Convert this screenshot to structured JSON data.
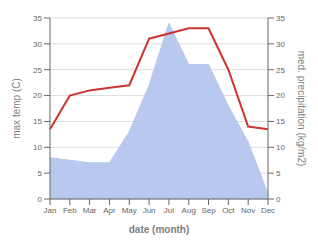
{
  "chart_data": {
    "type": "line",
    "categories": [
      "Jan",
      "Feb",
      "Mar",
      "Apr",
      "May",
      "Jun",
      "Jul",
      "Aug",
      "Sep",
      "Oct",
      "Nov",
      "Dec"
    ],
    "xlabel": "date (month)",
    "ylabel": "max temp (C)",
    "y2label": "med. precipitation (kg/m2)",
    "ylim": [
      0,
      35
    ],
    "yticks": [
      0,
      5,
      10,
      15,
      20,
      25,
      30,
      35
    ],
    "y2lim": [
      0,
      35
    ],
    "y2ticks": [
      0,
      5,
      10,
      15,
      20,
      25,
      30,
      35
    ],
    "grid": true,
    "series": [
      {
        "type": "line",
        "color": "#cc3333",
        "values": [
          13.5,
          20.0,
          21.0,
          21.5,
          22.0,
          31.0,
          32.0,
          33.0,
          33.0,
          25.0,
          14.0,
          13.5
        ]
      },
      {
        "type": "area",
        "axis": "y2",
        "color": "#b8c8ee",
        "values": [
          8.0,
          7.5,
          7.0,
          7.0,
          13.0,
          22.0,
          34.0,
          26.0,
          26.0,
          18.0,
          11.0,
          1.0
        ]
      }
    ]
  }
}
